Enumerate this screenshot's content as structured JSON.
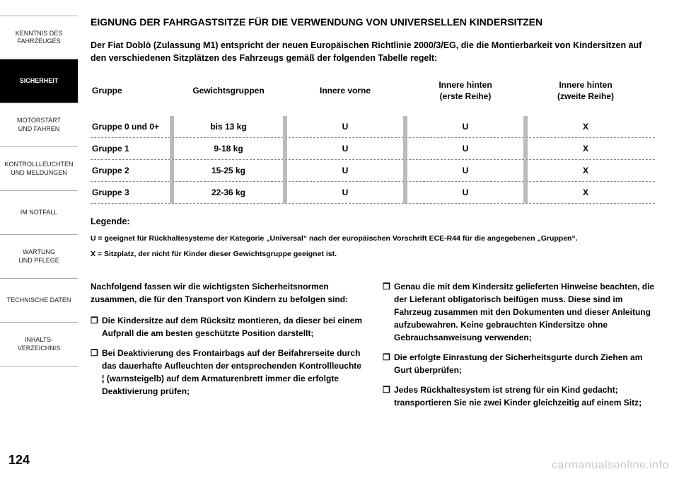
{
  "sidebar": {
    "tabs": [
      {
        "label": "KENNTNIS DES\nFAHRZEUGES",
        "active": false
      },
      {
        "label": "SICHERHEIT",
        "active": true
      },
      {
        "label": "MOTORSTART\nUND FAHREN",
        "active": false
      },
      {
        "label": "KONTROLLLEUCHTEN\nUND MELDUNGEN",
        "active": false
      },
      {
        "label": "IM NOTFALL",
        "active": false
      },
      {
        "label": "WARTUNG\nUND PFLEGE",
        "active": false
      },
      {
        "label": "TECHNISCHE DATEN",
        "active": false
      },
      {
        "label": "INHALTS-\nVERZEICHNIS",
        "active": false
      }
    ]
  },
  "title": "EIGNUNG DER FAHRGASTSITZE FÜR DIE VERWENDUNG VON UNIVERSELLEN KINDERSITZEN",
  "intro": "Der Fiat Doblò (Zulassung M1) entspricht der neuen Europäischen Richtlinie 2000/3/EG, die die Montierbarkeit von Kindersitzen auf den verschiedenen Sitzplätzen des Fahrzeugs gemäß der folgenden Tabelle regelt:",
  "table": {
    "headers": [
      "Gruppe",
      "Gewichtsgruppen",
      "Innere vorne",
      "Innere hinten\n(erste Reihe)",
      "Innere hinten\n(zweite Reihe)"
    ],
    "rows": [
      [
        "Gruppe 0 und 0+",
        "bis 13 kg",
        "U",
        "U",
        "X"
      ],
      [
        "Gruppe 1",
        "9-18 kg",
        "U",
        "U",
        "X"
      ],
      [
        "Gruppe 2",
        "15-25 kg",
        "U",
        "U",
        "X"
      ],
      [
        "Gruppe 3",
        "22-36 kg",
        "U",
        "U",
        "X"
      ]
    ]
  },
  "legend": {
    "title": "Legende:",
    "lines": [
      "U = geeignet für Rückhaltesysteme der Kategorie „Universal“ nach der europäischen Vorschrift ECE-R44 für die angegebenen „Gruppen“.",
      "X = Sitzplatz, der nicht für Kinder dieser Gewichtsgruppe geeignet ist."
    ]
  },
  "left_col": {
    "intro": "Nachfolgend fassen wir die wichtigsten Sicherheitsnormen zusammen, die für den Transport von Kindern zu befolgen sind:",
    "bullets": [
      "Die Kindersitze auf dem Rücksitz montieren, da dieser bei einem Aufprall die am besten geschützte Position darstellt;",
      "Bei Deaktivierung des Frontairbags auf der Beifahrerseite durch das dauerhafte Aufleuchten der entsprechenden Kontrollleuchte ¦ (warnsteigelb) auf dem Armaturenbrett immer die erfolgte Deaktivierung prüfen;"
    ]
  },
  "right_col": {
    "bullets": [
      "Genau die mit dem Kindersitz gelieferten Hinweise beachten, die der Lieferant obligatorisch beifügen muss. Diese sind im Fahrzeug zusammen mit den Dokumenten und dieser Anleitung aufzubewahren. Keine gebrauchten Kindersitze ohne Gebrauchsanweisung verwenden;",
      "Die erfolgte Einrastung der Sicherheitsgurte durch Ziehen am Gurt überprüfen;",
      "Jedes Rückhaltesystem ist streng für ein Kind gedacht; transportieren Sie nie zwei Kinder gleichzeitig auf einem Sitz;"
    ]
  },
  "page_number": "124",
  "watermark": "carmanualsonline.info"
}
